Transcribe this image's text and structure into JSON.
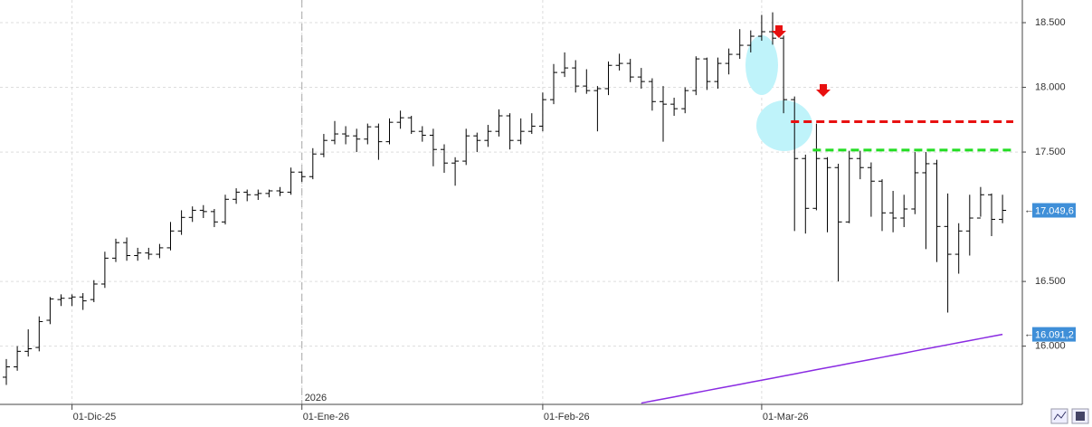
{
  "chart_data": {
    "type": "ohlc",
    "color": "#000000",
    "categories": [
      null,
      null,
      null,
      null,
      null,
      null,
      "01-Dic-25",
      null,
      null,
      null,
      null,
      null,
      null,
      null,
      null,
      null,
      null,
      null,
      null,
      null,
      null,
      null,
      null,
      null,
      null,
      null,
      null,
      "01-Ene-26",
      null,
      null,
      null,
      null,
      null,
      null,
      null,
      null,
      null,
      null,
      null,
      null,
      null,
      null,
      null,
      null,
      null,
      null,
      null,
      null,
      null,
      "01-Feb-26",
      null,
      null,
      null,
      null,
      null,
      null,
      null,
      null,
      null,
      null,
      null,
      null,
      null,
      null,
      null,
      null,
      null,
      null,
      null,
      "01-Mar-26",
      null,
      null,
      null,
      null,
      null,
      null,
      null,
      null,
      null,
      null,
      null,
      null,
      null,
      null,
      null,
      null,
      null,
      null,
      null,
      null,
      null,
      null
    ],
    "open": [
      15760,
      15840,
      15960,
      15990,
      16200,
      16360,
      16370,
      16380,
      16360,
      16480,
      16680,
      16800,
      16700,
      16720,
      16710,
      16760,
      16890,
      16995,
      17050,
      17040,
      16960,
      17135,
      17190,
      17170,
      17180,
      17200,
      17190,
      17345,
      17310,
      17485,
      17590,
      17640,
      17625,
      17600,
      17695,
      17580,
      17730,
      17765,
      17660,
      17630,
      17520,
      17415,
      17430,
      17625,
      17590,
      17660,
      17780,
      17590,
      17660,
      17700,
      17905,
      18115,
      18150,
      18010,
      17975,
      17990,
      18170,
      18185,
      18080,
      18045,
      17890,
      17870,
      17835,
      17975,
      18220,
      18045,
      18185,
      18255,
      18325,
      18395,
      18430,
      18380,
      17905,
      17450,
      17065,
      17450,
      17380,
      16960,
      17450,
      17380,
      17275,
      17030,
      16990,
      17060,
      17340,
      17410,
      16925,
      16710,
      16890,
      16990,
      17170,
      16980
    ],
    "high": [
      15900,
      16000,
      16130,
      16230,
      16380,
      16400,
      16400,
      16410,
      16510,
      16730,
      16830,
      16840,
      16760,
      16760,
      16790,
      16960,
      17050,
      17080,
      17090,
      17060,
      17170,
      17220,
      17210,
      17210,
      17210,
      17230,
      17380,
      17350,
      17530,
      17640,
      17740,
      17700,
      17680,
      17720,
      17720,
      17760,
      17820,
      17780,
      17700,
      17680,
      17560,
      17460,
      17680,
      17650,
      17710,
      17830,
      17800,
      17760,
      17800,
      17960,
      18180,
      18270,
      18210,
      18140,
      18010,
      18200,
      18260,
      18220,
      18150,
      18070,
      18010,
      17920,
      18000,
      18240,
      18230,
      18230,
      18300,
      18450,
      18440,
      18560,
      18580,
      18400,
      17930,
      17480,
      17720,
      17460,
      17410,
      17510,
      17510,
      17420,
      17290,
      17200,
      17170,
      17500,
      17500,
      17440,
      17180,
      16950,
      17170,
      17230,
      17180,
      17170
    ],
    "low": [
      15700,
      15810,
      15920,
      15960,
      16170,
      16310,
      16310,
      16280,
      16340,
      16450,
      16650,
      16660,
      16660,
      16670,
      16680,
      16740,
      16860,
      16960,
      16990,
      16920,
      16940,
      17100,
      17120,
      17130,
      17150,
      17160,
      17170,
      17270,
      17290,
      17460,
      17560,
      17560,
      17500,
      17560,
      17440,
      17560,
      17680,
      17640,
      17580,
      17390,
      17340,
      17240,
      17400,
      17500,
      17540,
      17620,
      17520,
      17560,
      17640,
      17660,
      17870,
      18080,
      17960,
      17950,
      17660,
      17940,
      18130,
      18040,
      17990,
      17820,
      17580,
      17780,
      17800,
      17940,
      17980,
      17990,
      18100,
      18220,
      18270,
      18360,
      18330,
      17800,
      16890,
      16870,
      17050,
      16880,
      16500,
      16950,
      17290,
      17000,
      16890,
      16880,
      16920,
      17020,
      16750,
      16650,
      16260,
      16560,
      16700,
      17000,
      16850,
      16950
    ],
    "close": [
      15840,
      15960,
      15980,
      16190,
      16365,
      16370,
      16380,
      16350,
      16480,
      16680,
      16800,
      16700,
      16720,
      16710,
      16760,
      16890,
      16995,
      17050,
      17040,
      16960,
      17135,
      17190,
      17170,
      17180,
      17200,
      17190,
      17345,
      17310,
      17485,
      17590,
      17640,
      17625,
      17600,
      17695,
      17580,
      17730,
      17765,
      17660,
      17630,
      17520,
      17415,
      17430,
      17625,
      17590,
      17660,
      17780,
      17590,
      17660,
      17700,
      17905,
      18115,
      18150,
      18010,
      17975,
      17990,
      18170,
      18185,
      18080,
      18045,
      17890,
      17870,
      17835,
      17975,
      18220,
      18045,
      18185,
      18255,
      18325,
      18395,
      18430,
      18380,
      17905,
      17450,
      17065,
      17450,
      17380,
      16960,
      17450,
      17380,
      17275,
      17030,
      16990,
      17060,
      17340,
      17410,
      16925,
      16710,
      16890,
      16990,
      17170,
      16980,
      17049.6
    ],
    "last_label": "17.049,6",
    "overlays": [
      {
        "type": "line",
        "color": "#8a2be2",
        "last_label": "16.091,2",
        "values": [
          null,
          null,
          null,
          null,
          null,
          null,
          null,
          null,
          null,
          null,
          null,
          null,
          null,
          null,
          null,
          null,
          null,
          null,
          null,
          null,
          null,
          null,
          null,
          null,
          null,
          null,
          null,
          null,
          null,
          null,
          null,
          null,
          null,
          null,
          null,
          null,
          null,
          null,
          null,
          null,
          null,
          null,
          null,
          null,
          null,
          null,
          null,
          null,
          null,
          null,
          null,
          null,
          null,
          null,
          null,
          null,
          null,
          null,
          15560,
          15576,
          15592,
          15608,
          15624,
          15641,
          15657,
          15673,
          15689,
          15705,
          15721,
          15737,
          15753,
          15769,
          15785,
          15802,
          15818,
          15834,
          15850,
          15866,
          15882,
          15898,
          15914,
          15930,
          15946,
          15963,
          15979,
          15995,
          16011,
          16027,
          16043,
          16059,
          16075,
          16091.2
        ]
      }
    ],
    "levels": [
      {
        "value": 17735,
        "color": "#e81010",
        "from": 72
      },
      {
        "value": 17515,
        "color": "#22dd22",
        "from": 74
      }
    ],
    "year_marker": {
      "label": "2026",
      "at": 27
    },
    "ylim": [
      15550,
      18675
    ],
    "yticks": [
      {
        "value": 16000,
        "label": "16.000"
      },
      {
        "value": 16500,
        "label": "16.500"
      },
      {
        "value": 17500,
        "label": "17.500"
      },
      {
        "value": 18000,
        "label": "18.000"
      },
      {
        "value": 18500,
        "label": "18.500"
      }
    ],
    "grid": true
  }
}
